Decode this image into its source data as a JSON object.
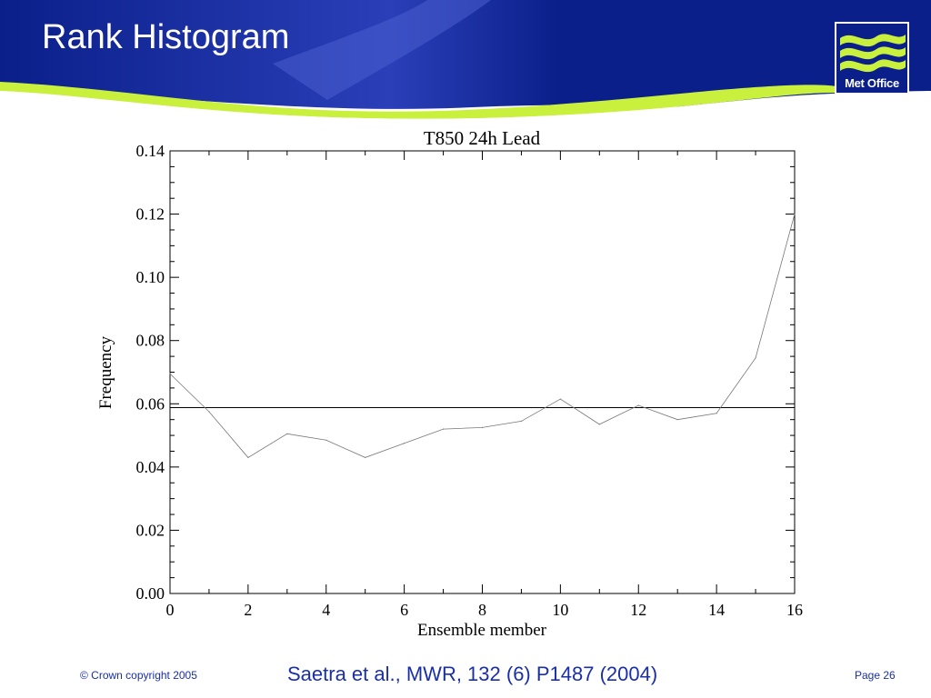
{
  "slide": {
    "title": "Rank Histogram",
    "logo_text": "Met Office"
  },
  "colors": {
    "header_blue": "#0b1f8a",
    "header_blue_light": "#3a4fc8",
    "swoosh_green": "#c8f03c",
    "footer_text": "#1a2fa8"
  },
  "footer": {
    "copyright": "© Crown copyright 2005",
    "citation": "Saetra et al., MWR, 132 (6) P1487 (2004)",
    "page": "Page 26"
  },
  "chart_data": {
    "type": "line",
    "title": "T850 24h Lead",
    "xlabel": "Ensemble member",
    "ylabel": "Frequency",
    "xlim": [
      0,
      16
    ],
    "ylim": [
      0,
      0.14
    ],
    "xticks": [
      "0",
      "2",
      "4",
      "6",
      "8",
      "10",
      "12",
      "14",
      "16"
    ],
    "yticks": [
      "0.00",
      "0.02",
      "0.04",
      "0.06",
      "0.08",
      "0.10",
      "0.12",
      "0.14"
    ],
    "x": [
      0,
      1,
      2,
      3,
      4,
      5,
      6,
      7,
      8,
      9,
      10,
      11,
      12,
      13,
      14,
      15,
      16
    ],
    "series": [
      {
        "values": [
          0.0695,
          0.0575,
          0.043,
          0.0505,
          0.0485,
          0.043,
          0.0475,
          0.052,
          0.0525,
          0.0545,
          0.0615,
          0.0535,
          0.0595,
          0.055,
          0.057,
          0.0745,
          0.12
        ]
      }
    ],
    "reference_line": 0.0588,
    "grid": false
  }
}
